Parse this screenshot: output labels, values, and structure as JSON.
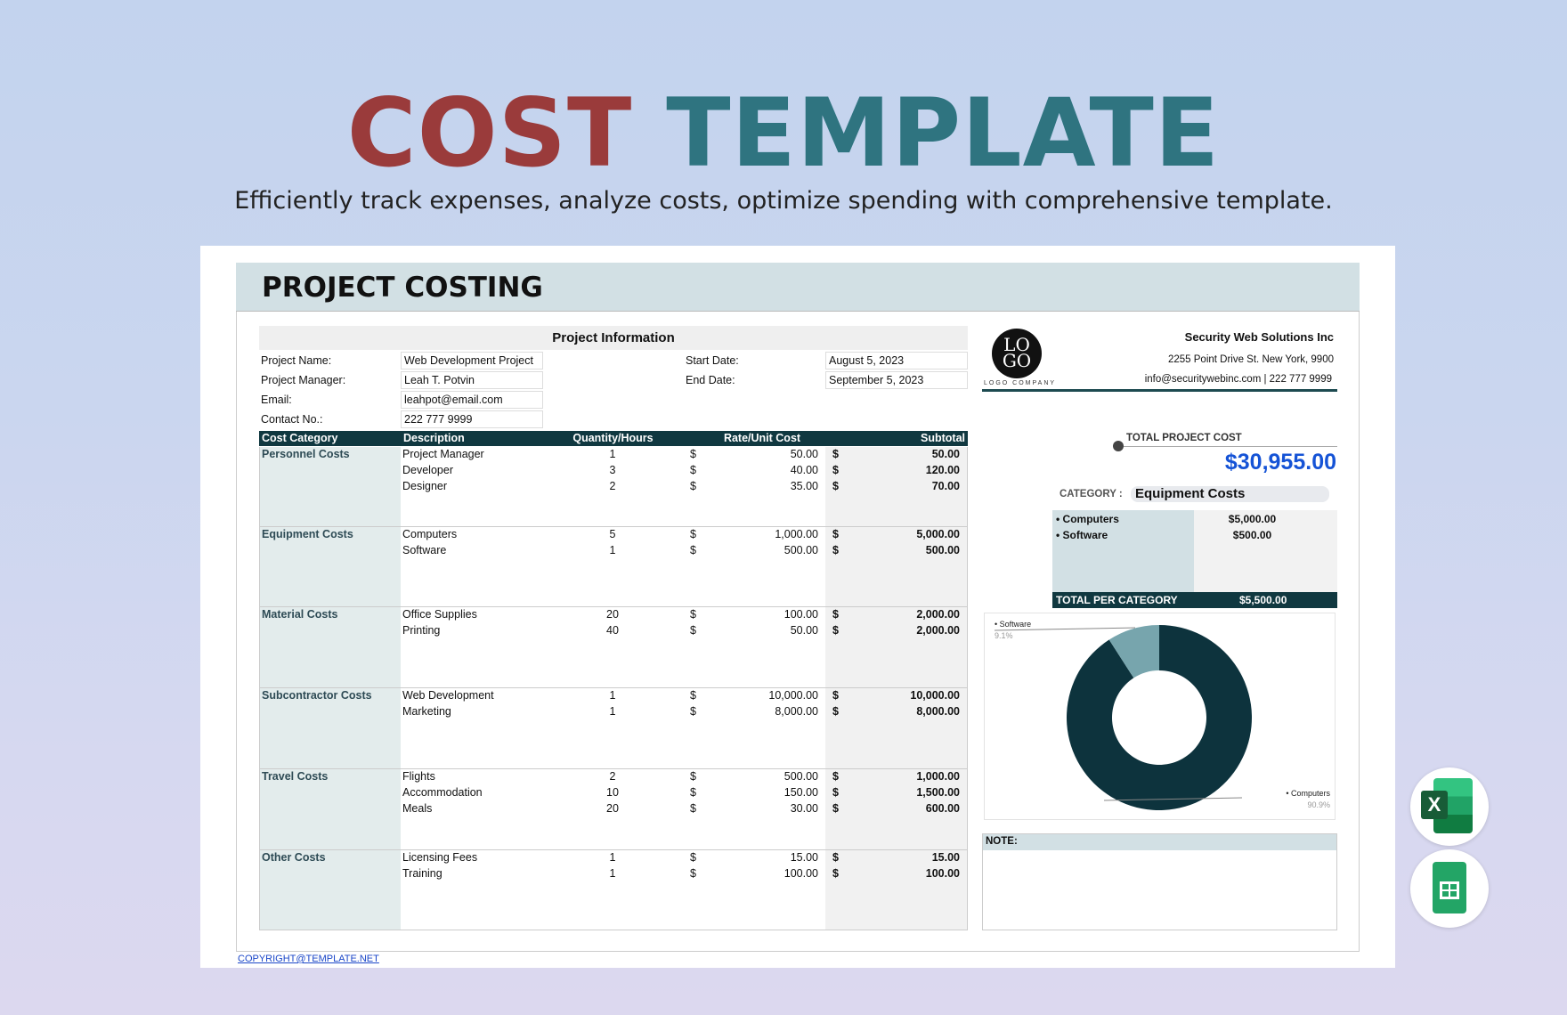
{
  "banner": {
    "title_part1": "COST",
    "title_part2": "TEMPLATE",
    "subtitle": "Efficiently track expenses, analyze costs, optimize spending with comprehensive template."
  },
  "sheet_title": "PROJECT COSTING",
  "project_info": {
    "header": "Project Information",
    "fields": [
      {
        "label": "Project Name:",
        "value": "Web Development Project"
      },
      {
        "label": "Project Manager:",
        "value": "Leah T. Potvin"
      },
      {
        "label": "Email:",
        "value": "leahpot@email.com"
      },
      {
        "label": "Contact No.:",
        "value": "222 777 9999"
      }
    ],
    "dates": [
      {
        "label": "Start Date:",
        "value": "August 5, 2023"
      },
      {
        "label": "End Date:",
        "value": "September 5, 2023"
      }
    ]
  },
  "table": {
    "columns": [
      "Cost Category",
      "Description",
      "Quantity/Hours",
      "Rate/Unit Cost",
      "Subtotal"
    ],
    "currency": "$",
    "categories": [
      {
        "name": "Personnel Costs",
        "items": [
          {
            "desc": "Project Manager",
            "qty": "1",
            "rate": "50.00",
            "subtotal": "50.00"
          },
          {
            "desc": "Developer",
            "qty": "3",
            "rate": "40.00",
            "subtotal": "120.00"
          },
          {
            "desc": "Designer",
            "qty": "2",
            "rate": "35.00",
            "subtotal": "70.00"
          }
        ]
      },
      {
        "name": "Equipment Costs",
        "items": [
          {
            "desc": "Computers",
            "qty": "5",
            "rate": "1,000.00",
            "subtotal": "5,000.00"
          },
          {
            "desc": "Software",
            "qty": "1",
            "rate": "500.00",
            "subtotal": "500.00"
          }
        ]
      },
      {
        "name": "Material Costs",
        "items": [
          {
            "desc": "Office Supplies",
            "qty": "20",
            "rate": "100.00",
            "subtotal": "2,000.00"
          },
          {
            "desc": "Printing",
            "qty": "40",
            "rate": "50.00",
            "subtotal": "2,000.00"
          }
        ]
      },
      {
        "name": "Subcontractor Costs",
        "items": [
          {
            "desc": "Web Development",
            "qty": "1",
            "rate": "10,000.00",
            "subtotal": "10,000.00"
          },
          {
            "desc": "Marketing",
            "qty": "1",
            "rate": "8,000.00",
            "subtotal": "8,000.00"
          }
        ]
      },
      {
        "name": "Travel Costs",
        "items": [
          {
            "desc": "Flights",
            "qty": "2",
            "rate": "500.00",
            "subtotal": "1,000.00"
          },
          {
            "desc": "Accommodation",
            "qty": "10",
            "rate": "150.00",
            "subtotal": "1,500.00"
          },
          {
            "desc": "Meals",
            "qty": "20",
            "rate": "30.00",
            "subtotal": "600.00"
          }
        ]
      },
      {
        "name": "Other Costs",
        "items": [
          {
            "desc": "Licensing Fees",
            "qty": "1",
            "rate": "15.00",
            "subtotal": "15.00"
          },
          {
            "desc": "Training",
            "qty": "1",
            "rate": "100.00",
            "subtotal": "100.00"
          }
        ]
      }
    ]
  },
  "company": {
    "logo_top": "LO",
    "logo_bottom": "GO",
    "logo_caption": "LOGO COMPANY",
    "name": "Security Web Solutions Inc",
    "address": "2255  Point Drive St. New York, 9900",
    "contact": "info@securitywebinc.com  | 222 777 9999"
  },
  "summary": {
    "total_label": "TOTAL PROJECT COST",
    "total_value": "$30,955.00",
    "category_label": "CATEGORY :",
    "category_value": "Equipment Costs",
    "items": [
      {
        "name": "• Computers",
        "value": "$5,000.00"
      },
      {
        "name": "• Software",
        "value": "$500.00"
      }
    ],
    "total_per_label": "TOTAL PER CATEGORY",
    "total_per_value": "$5,500.00"
  },
  "chart_data": {
    "type": "pie",
    "donut": true,
    "categories": [
      "Computers",
      "Software"
    ],
    "values": [
      90.9,
      9.1
    ],
    "labels": [
      "• Computers",
      "• Software"
    ],
    "pct_labels": [
      "90.9%",
      "9.1%"
    ],
    "colors": [
      "#0d333d",
      "#77a5ad"
    ]
  },
  "note": {
    "label": "NOTE:"
  },
  "footer": {
    "copyright": "COPYRIGHT@TEMPLATE.NET"
  },
  "colors": {
    "accent_red": "#9a3b3b",
    "accent_teal": "#2f7480",
    "dark": "#103840",
    "total_blue": "#1553d6"
  },
  "app_icons": [
    "excel-icon",
    "google-sheets-icon"
  ]
}
